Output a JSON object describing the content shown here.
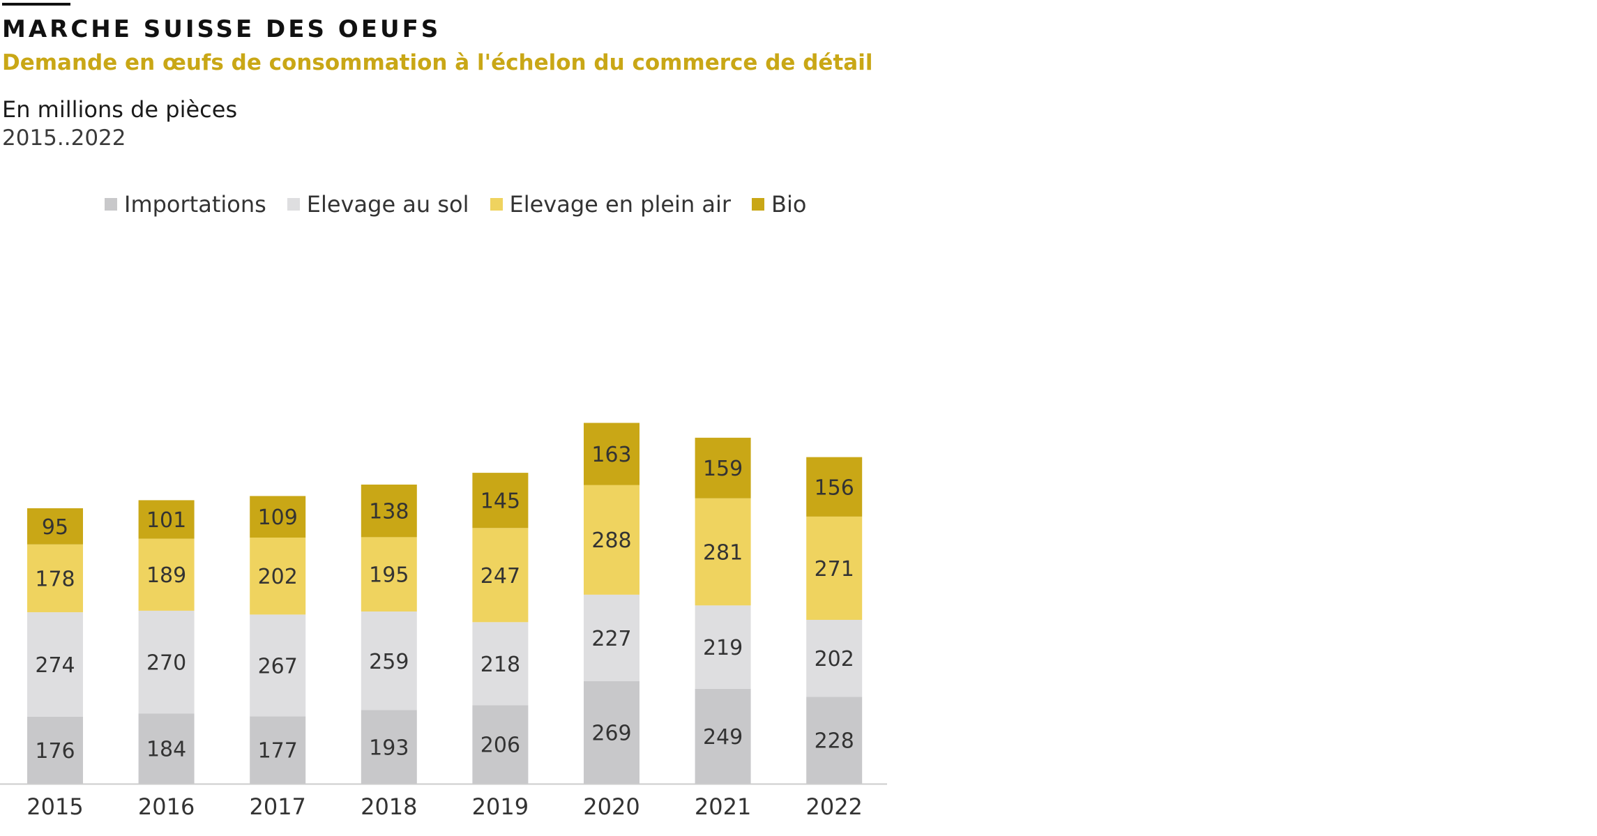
{
  "header": {
    "title": "MARCHE SUISSE DES OEUFS",
    "subtitle": "Demande en œufs de consommation à l'échelon du commerce de détail",
    "unit": "En millions de pièces",
    "period": "2015..2022"
  },
  "colors": {
    "accent": "#c9a716",
    "importations": "#c8c8ca",
    "elevage_sol": "#dedee0",
    "plein_air": "#efd35f",
    "bio": "#c9a716",
    "axis": "#cccccc"
  },
  "chart_data": {
    "type": "bar",
    "stacked": true,
    "title": "MARCHE SUISSE DES OEUFS",
    "subtitle": "Demande en œufs de consommation à l'échelon du commerce de détail",
    "ylabel": "En millions de pièces",
    "xlabel": "",
    "ylim": [
      0,
      1000
    ],
    "grid": false,
    "legend": "top-left",
    "categories": [
      "2015",
      "2016",
      "2017",
      "2018",
      "2019",
      "2020",
      "2021",
      "2022"
    ],
    "series": [
      {
        "name": "Importations",
        "color": "#c8c8ca",
        "values": [
          176,
          184,
          177,
          193,
          206,
          269,
          249,
          228
        ]
      },
      {
        "name": "Elevage au sol",
        "color": "#dedee0",
        "values": [
          274,
          270,
          267,
          259,
          218,
          227,
          219,
          202
        ]
      },
      {
        "name": "Elevage en plein air",
        "color": "#efd35f",
        "values": [
          178,
          189,
          202,
          195,
          247,
          288,
          281,
          271
        ]
      },
      {
        "name": "Bio",
        "color": "#c9a716",
        "values": [
          95,
          101,
          109,
          138,
          145,
          163,
          159,
          156
        ]
      }
    ]
  }
}
